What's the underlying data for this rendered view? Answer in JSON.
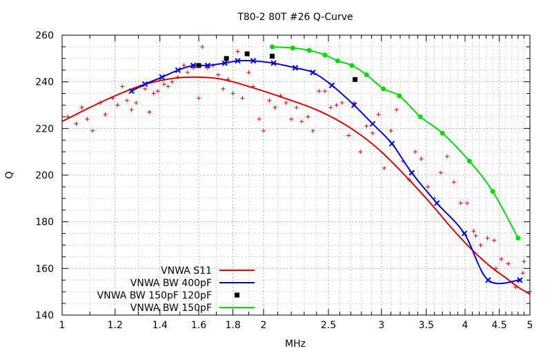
{
  "chart_data": {
    "type": "line",
    "title": "T80-2 80T #26 Q-Curve",
    "xlabel": "MHz",
    "ylabel": "Q",
    "xscale": "log",
    "xlim": [
      1,
      5
    ],
    "ylim": [
      140,
      260
    ],
    "xticks": [
      1,
      1.2,
      1.4,
      1.6,
      1.8,
      2,
      2.5,
      3,
      3.5,
      4,
      4.5,
      5
    ],
    "yticks": [
      140,
      160,
      180,
      200,
      220,
      240,
      260
    ],
    "grid": true,
    "legend_position": "bottom-left",
    "series": [
      {
        "name": "VNWA S11",
        "style": "line",
        "color": "#dd0000",
        "x": [
          1.0,
          1.1,
          1.2,
          1.3,
          1.4,
          1.5,
          1.6,
          1.7,
          1.8,
          1.9,
          2.0,
          2.2,
          2.4,
          2.6,
          2.8,
          3.0,
          3.2,
          3.4,
          3.6,
          3.8,
          4.0,
          4.2,
          4.4,
          4.6,
          4.8,
          5.0
        ],
        "y": [
          223,
          229,
          234,
          238,
          240.5,
          241.8,
          242,
          241.5,
          240,
          238,
          236,
          232,
          228,
          223,
          217,
          210,
          202,
          194,
          186,
          178,
          171,
          165,
          160,
          156,
          152,
          149
        ]
      },
      {
        "name": "VNWA BW 400pF",
        "style": "line-marker",
        "color": "#0000dd",
        "x": [
          1.27,
          1.33,
          1.41,
          1.49,
          1.57,
          1.65,
          1.75,
          1.83,
          1.93,
          2.07,
          2.23,
          2.37,
          2.53,
          2.73,
          2.91,
          3.11,
          3.33,
          3.63,
          3.99,
          4.33,
          4.83
        ],
        "y": [
          236,
          239,
          242,
          245,
          247,
          247,
          248,
          249,
          249,
          248,
          246,
          244,
          238.5,
          230,
          222,
          213.5,
          201,
          188,
          175,
          155,
          155
        ]
      },
      {
        "name": "VNWA BW 150pF 120pF",
        "style": "marker",
        "color": "#000000",
        "x": [
          1.6,
          1.76,
          1.89,
          2.06,
          2.74
        ],
        "y": [
          247,
          250,
          252,
          251,
          241
        ]
      },
      {
        "name": "VNWA BW 150pF",
        "style": "line-marker",
        "color": "#00dd00",
        "x": [
          2.06,
          2.21,
          2.34,
          2.47,
          2.58,
          2.71,
          2.85,
          3.02,
          3.19,
          3.43,
          3.7,
          4.06,
          4.4,
          4.8
        ],
        "y": [
          255,
          254.5,
          253.5,
          251.5,
          249,
          247,
          243,
          237,
          234,
          225,
          218,
          206,
          193,
          173
        ]
      }
    ],
    "scatter_points": {
      "color": "#dd0000",
      "symbol": "+",
      "x": [
        1.02,
        1.05,
        1.07,
        1.09,
        1.11,
        1.14,
        1.16,
        1.19,
        1.21,
        1.23,
        1.25,
        1.27,
        1.29,
        1.31,
        1.33,
        1.35,
        1.37,
        1.39,
        1.42,
        1.44,
        1.46,
        1.49,
        1.52,
        1.54,
        1.57,
        1.6,
        1.62,
        1.65,
        1.68,
        1.71,
        1.74,
        1.77,
        1.8,
        1.83,
        1.86,
        1.9,
        1.93,
        1.97,
        2.0,
        2.04,
        2.08,
        2.12,
        2.16,
        2.2,
        2.24,
        2.28,
        2.33,
        2.37,
        2.42,
        2.47,
        2.52,
        2.57,
        2.62,
        2.68,
        2.73,
        2.79,
        2.85,
        2.91,
        2.97,
        3.03,
        3.1,
        3.16,
        3.23,
        3.3,
        3.37,
        3.44,
        3.52,
        3.6,
        3.68,
        3.76,
        3.85,
        3.94,
        4.03,
        4.12,
        4.22,
        4.32,
        4.42,
        4.53,
        4.64,
        4.76,
        4.88,
        5.0,
        4.9,
        4.45,
        4.15
      ],
      "y": [
        225,
        222,
        229,
        224,
        219,
        231,
        226,
        233,
        230,
        238,
        232,
        228,
        231,
        238,
        237,
        227,
        235,
        236,
        239,
        238,
        240,
        242,
        247,
        244,
        246,
        233,
        255,
        246,
        247,
        243,
        237,
        241,
        235,
        253,
        233,
        244,
        238,
        224,
        219,
        232,
        229,
        234,
        231,
        224,
        229,
        223,
        225,
        219,
        236,
        236,
        229,
        230,
        231,
        217,
        231,
        210,
        221,
        218,
        226,
        203,
        219,
        228,
        206,
        198,
        210,
        207,
        195,
        190,
        201,
        208,
        197,
        188,
        188,
        176,
        170,
        173,
        172,
        164,
        162,
        152,
        158,
        150,
        163,
        160,
        174
      ]
    }
  }
}
